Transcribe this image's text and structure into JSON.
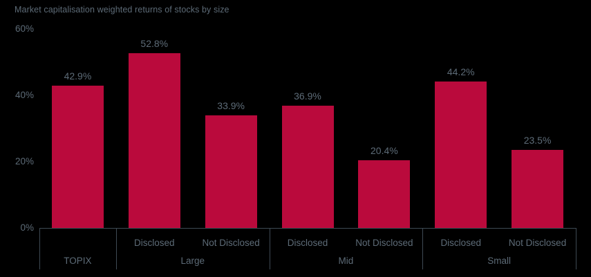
{
  "title": "Market capitalisation weighted returns of stocks by size",
  "colors": {
    "background": "#000000",
    "bar": "#ba0a3c",
    "text": "#5d6b77",
    "axis_line": "#3e4a54"
  },
  "chart_data": {
    "type": "bar",
    "title": "Market capitalisation weighted returns of stocks by size",
    "xlabel": "",
    "ylabel": "",
    "ylim": [
      0,
      60
    ],
    "grid": false,
    "legend": null,
    "y_axis": {
      "ticks": [
        "60%",
        "40%",
        "20%",
        "0%"
      ],
      "tick_values": [
        60,
        40,
        20,
        0
      ]
    },
    "groups": [
      {
        "label": "TOPIX",
        "bars": [
          {
            "label": "",
            "value": 42.9,
            "display": "42.9%"
          }
        ]
      },
      {
        "label": "Large",
        "bars": [
          {
            "label": "Disclosed",
            "value": 52.8,
            "display": "52.8%"
          },
          {
            "label": "Not Disclosed",
            "value": 33.9,
            "display": "33.9%"
          }
        ]
      },
      {
        "label": "Mid",
        "bars": [
          {
            "label": "Disclosed",
            "value": 36.9,
            "display": "36.9%"
          },
          {
            "label": "Not Disclosed",
            "value": 20.4,
            "display": "20.4%"
          }
        ]
      },
      {
        "label": "Small",
        "bars": [
          {
            "label": "Disclosed",
            "value": 44.2,
            "display": "44.2%"
          },
          {
            "label": "Not Disclosed",
            "value": 23.5,
            "display": "23.5%"
          }
        ]
      }
    ]
  }
}
